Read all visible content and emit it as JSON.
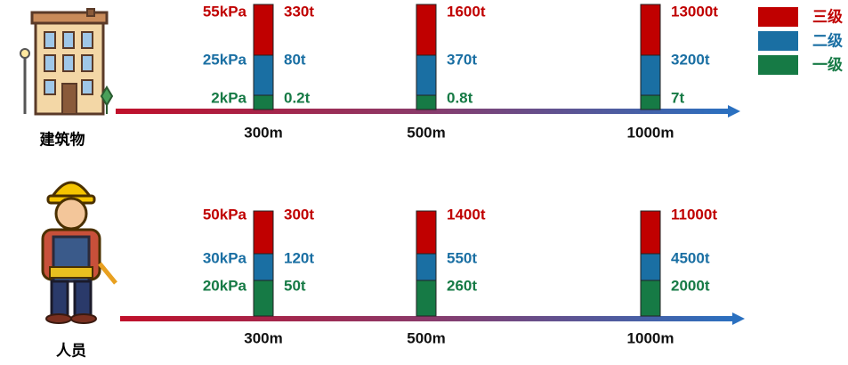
{
  "legend": [
    {
      "label": "三级",
      "color": "#c00000"
    },
    {
      "label": "二级",
      "color": "#1a6fa3"
    },
    {
      "label": "一级",
      "color": "#167a45"
    }
  ],
  "rows": [
    {
      "label": "建筑物",
      "pressures": [
        "55kPa",
        "25kPa",
        "2kPa"
      ],
      "groups": [
        {
          "distance": "300m",
          "levels": [
            "330t",
            "80t",
            "0.2t"
          ]
        },
        {
          "distance": "500m",
          "levels": [
            "1600t",
            "370t",
            "0.8t"
          ]
        },
        {
          "distance": "1000m",
          "levels": [
            "13000t",
            "3200t",
            "7t"
          ]
        }
      ]
    },
    {
      "label": "人员",
      "pressures": [
        "50kPa",
        "30kPa",
        "20kPa"
      ],
      "groups": [
        {
          "distance": "300m",
          "levels": [
            "300t",
            "120t",
            "50t"
          ]
        },
        {
          "distance": "500m",
          "levels": [
            "1400t",
            "550t",
            "260t"
          ]
        },
        {
          "distance": "1000m",
          "levels": [
            "11000t",
            "4500t",
            "2000t"
          ]
        }
      ]
    }
  ]
}
